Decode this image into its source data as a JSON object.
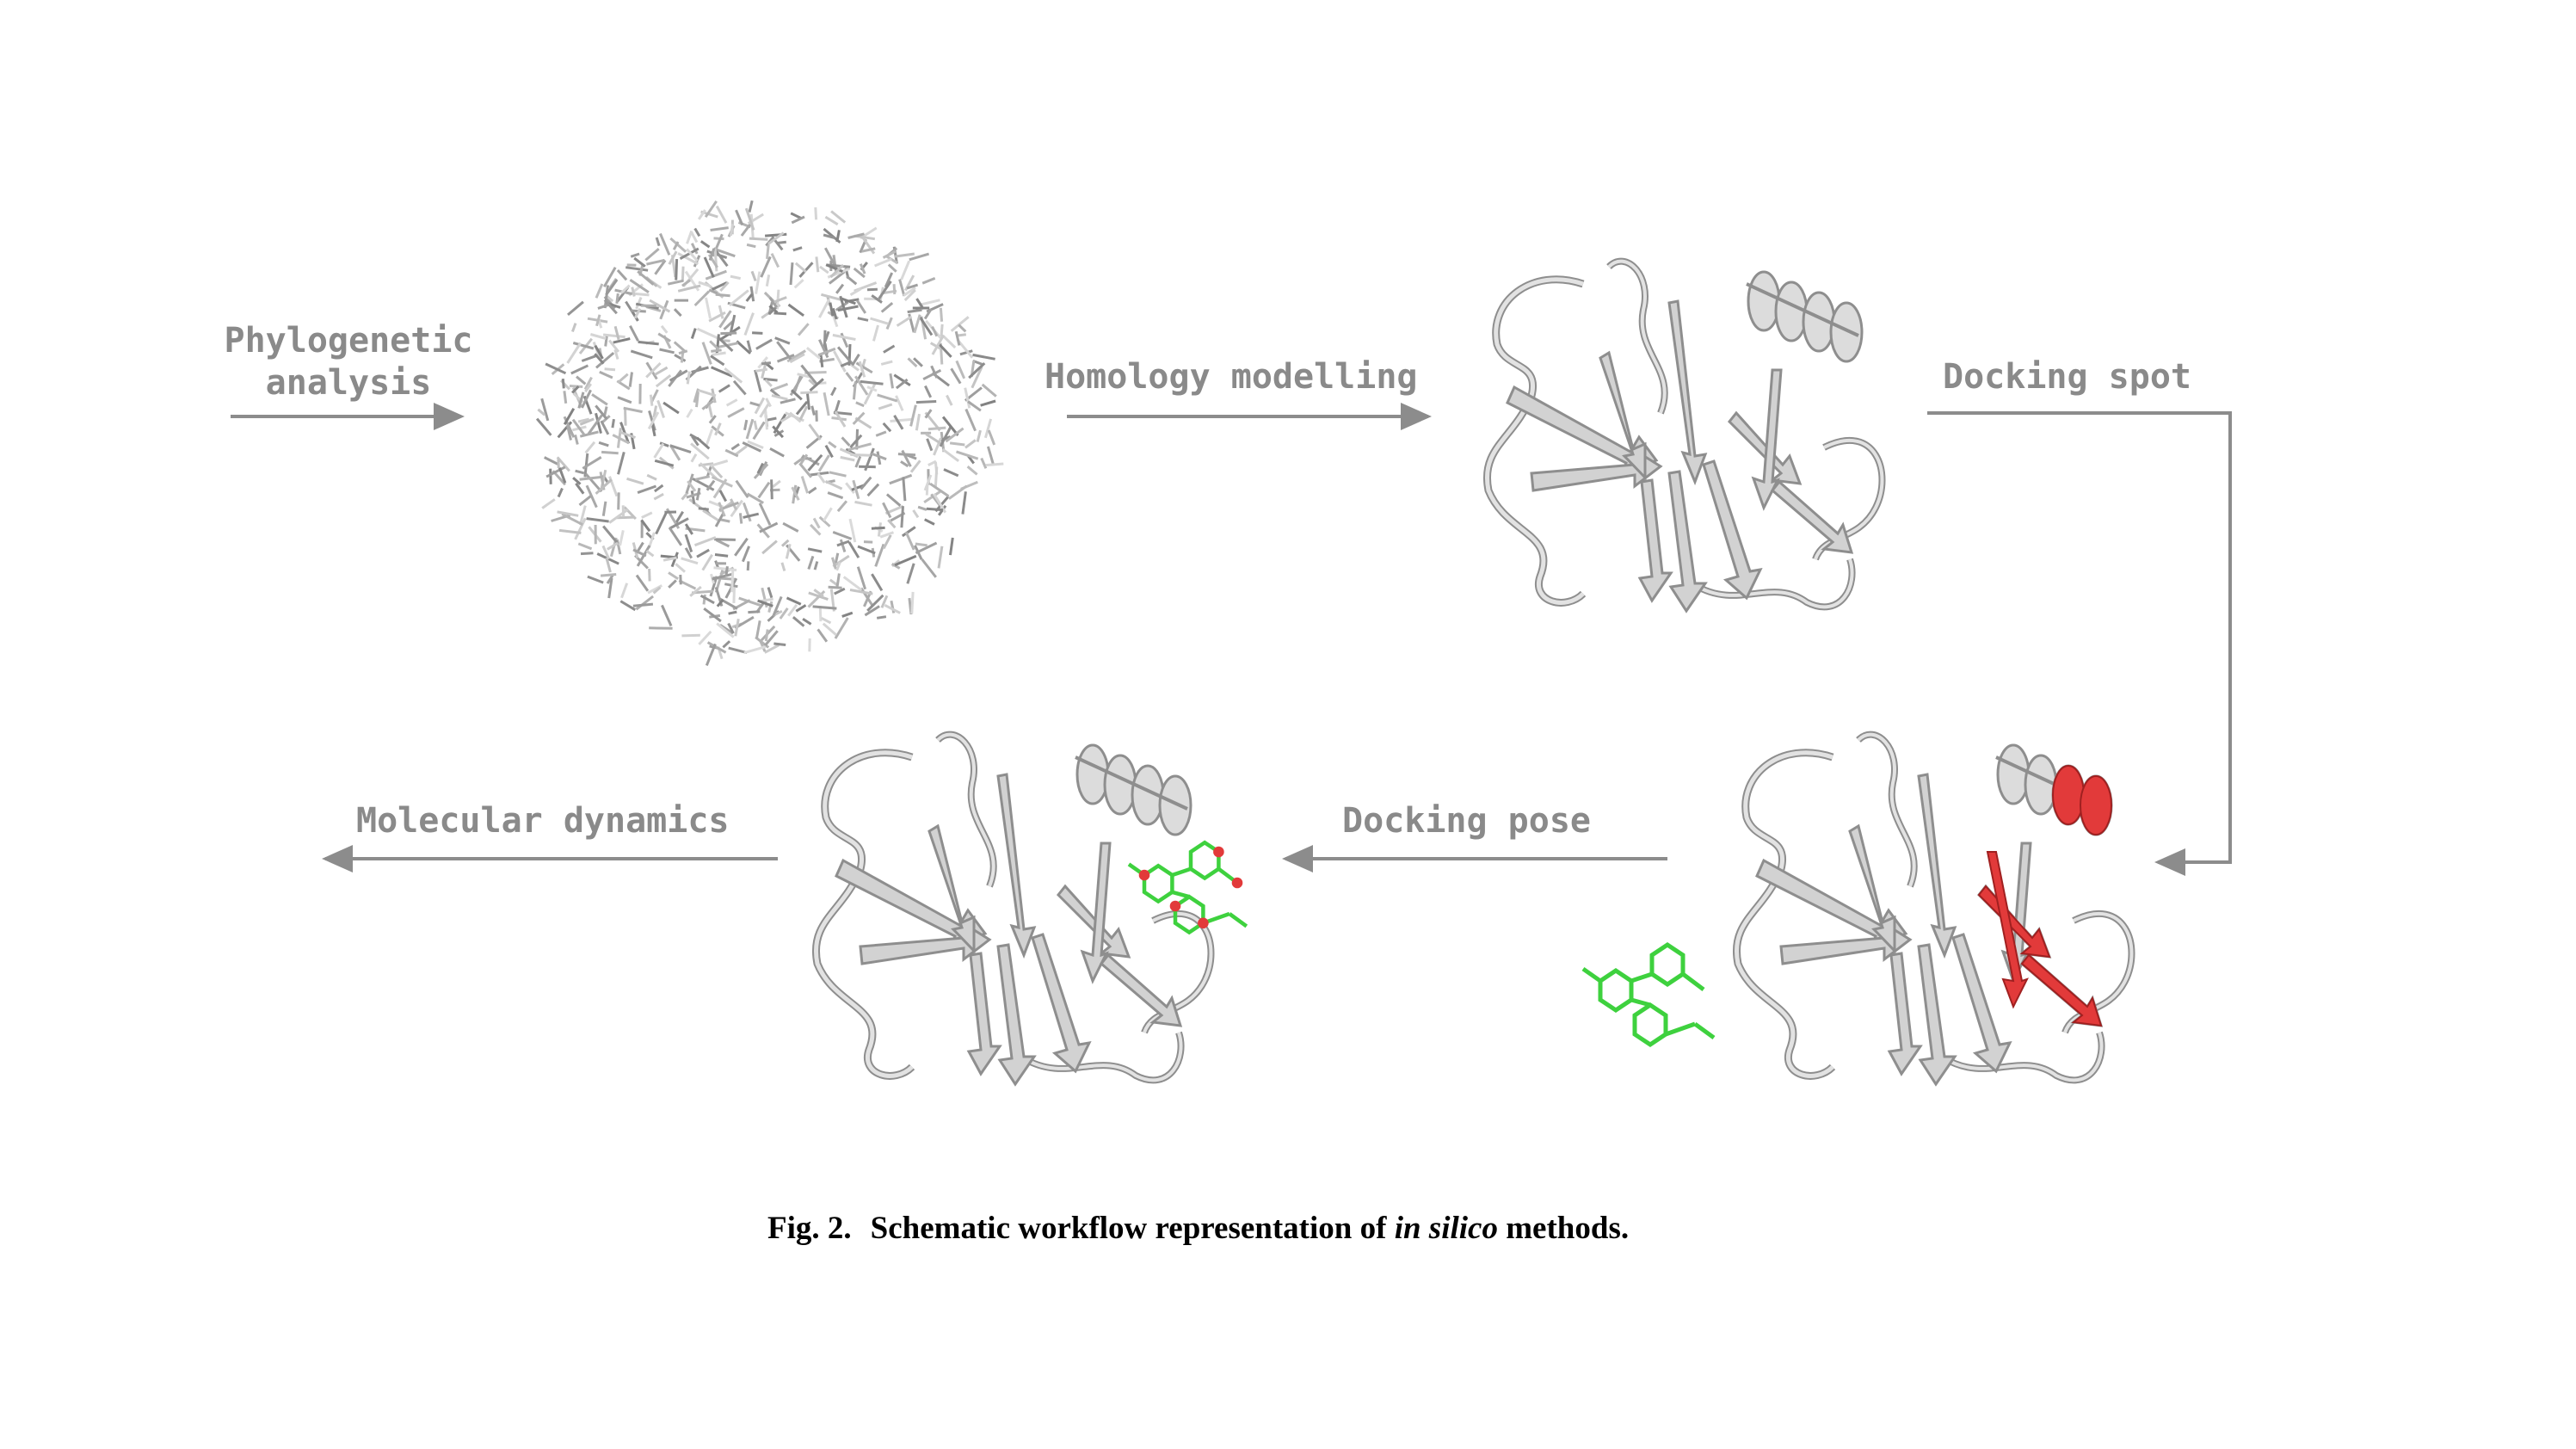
{
  "steps": {
    "phylogenetic_line1": "Phylogenetic",
    "phylogenetic_line2": "analysis",
    "homology": "Homology modelling",
    "docking_spot": "Docking spot",
    "docking_pose": "Docking pose",
    "molecular_dynamics": "Molecular dynamics"
  },
  "caption": {
    "number": "Fig. 2.",
    "text_before": "Schematic workflow representation of ",
    "text_italic": "in silico",
    "text_after": " methods."
  },
  "colors": {
    "arrow": "#8c8c8c",
    "protein": "#d2d2d2",
    "protein_edge": "#8e8e8e",
    "highlight": "#e23a3a",
    "ligand": "#3ed13e"
  }
}
